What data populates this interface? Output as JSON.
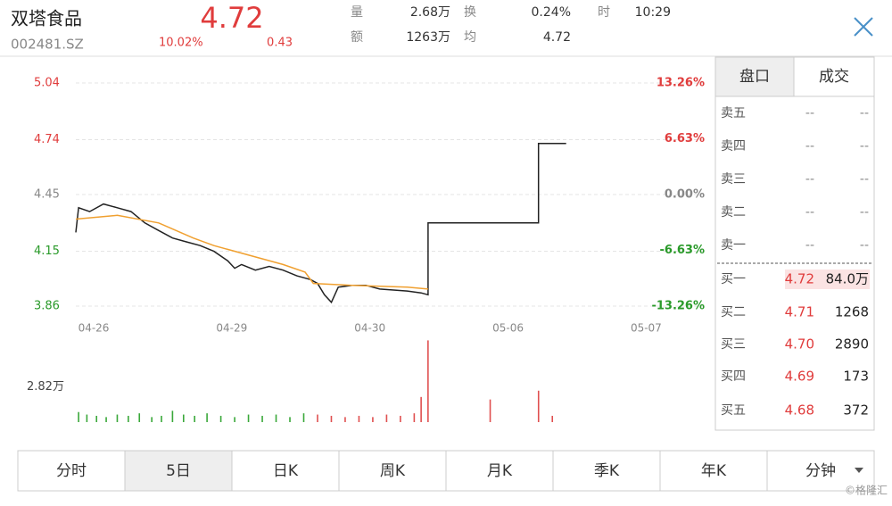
{
  "header": {
    "name": "双塔食品",
    "code": "002481.SZ",
    "price": "4.72",
    "change_pct": "10.02%",
    "change": "0.43",
    "stats": [
      {
        "label": "量",
        "value": "2.68万"
      },
      {
        "label": "换",
        "value": "0.24%"
      },
      {
        "label": "时",
        "value": "10:29"
      },
      {
        "label": "额",
        "value": "1263万"
      },
      {
        "label": "均",
        "value": "4.72"
      }
    ]
  },
  "chart_data": [
    {
      "type": "line",
      "xlim": [
        0,
        4.23
      ],
      "xticks": [
        {
          "value": 0,
          "label": "04-26"
        },
        {
          "value": 1,
          "label": "04-29"
        },
        {
          "value": 2,
          "label": "04-30"
        },
        {
          "value": 3,
          "label": "05-06"
        },
        {
          "value": 4,
          "label": "05-07"
        }
      ],
      "ylim": [
        3.86,
        5.04
      ],
      "yticks": [
        5.04,
        4.74,
        4.45,
        4.15,
        3.86
      ],
      "y2lim": [
        -13.26,
        13.26
      ],
      "y2ticks": [
        {
          "value": 13.26,
          "label": "13.26%"
        },
        {
          "value": 6.63,
          "label": "6.63%"
        },
        {
          "value": 0,
          "label": "0.00%"
        },
        {
          "value": -6.63,
          "label": "-6.63%"
        },
        {
          "value": -13.26,
          "label": "-13.26%"
        }
      ],
      "grid": true,
      "series": [
        {
          "color": "#222222",
          "x": [
            0,
            0.02,
            0.1,
            0.2,
            0.3,
            0.4,
            0.5,
            0.6,
            0.7,
            0.8,
            0.9,
            1.0,
            1.1,
            1.15,
            1.2,
            1.3,
            1.4,
            1.5,
            1.6,
            1.7,
            1.75,
            1.8,
            1.85,
            1.9,
            2.0,
            2.1,
            2.2,
            2.4,
            2.5,
            2.55,
            2.55,
            3.35,
            3.35,
            3.55
          ],
          "values": [
            4.25,
            4.38,
            4.36,
            4.4,
            4.38,
            4.36,
            4.3,
            4.26,
            4.22,
            4.2,
            4.18,
            4.15,
            4.1,
            4.06,
            4.08,
            4.05,
            4.07,
            4.05,
            4.02,
            4.0,
            3.98,
            3.92,
            3.88,
            3.96,
            3.97,
            3.97,
            3.95,
            3.94,
            3.93,
            3.92,
            4.3,
            4.3,
            4.72,
            4.72
          ]
        },
        {
          "color": "#f0a030",
          "x": [
            0,
            0.3,
            0.6,
            0.85,
            1.0,
            1.5,
            1.66,
            1.72,
            2.0,
            2.4,
            2.55
          ],
          "values": [
            4.32,
            4.34,
            4.3,
            4.22,
            4.18,
            4.08,
            4.04,
            3.98,
            3.97,
            3.96,
            3.95
          ]
        }
      ]
    },
    {
      "type": "bar",
      "xlim": [
        0,
        4.23
      ],
      "ylim": [
        0,
        6.6
      ],
      "yticks": [
        {
          "value": 2.82,
          "label": "2.82万"
        }
      ],
      "series": [
        {
          "color": "#3aa83a",
          "x": [
            0.02,
            0.08,
            0.15,
            0.22,
            0.3,
            0.38,
            0.46,
            0.55,
            0.62,
            0.7,
            0.78,
            0.86,
            0.95,
            1.05,
            1.15,
            1.25,
            1.35,
            1.45,
            1.55,
            1.65
          ],
          "values": [
            0.8,
            0.6,
            0.5,
            0.4,
            0.6,
            0.5,
            0.7,
            0.4,
            0.5,
            0.9,
            0.6,
            0.5,
            0.7,
            0.5,
            0.4,
            0.6,
            0.5,
            0.6,
            0.4,
            0.7
          ]
        },
        {
          "color": "#e05050",
          "x": [
            1.75,
            1.85,
            1.95,
            2.05,
            2.15,
            2.25,
            2.35,
            2.45,
            2.5,
            2.55,
            3.0,
            3.35,
            3.45
          ],
          "values": [
            0.6,
            0.5,
            0.4,
            0.5,
            0.4,
            0.6,
            0.5,
            0.7,
            2.0,
            6.5,
            1.8,
            2.5,
            0.5
          ]
        }
      ]
    }
  ],
  "order_book": {
    "tabs": [
      "盘口",
      "成交"
    ],
    "asks": [
      [
        "卖五",
        "--",
        "--"
      ],
      [
        "卖四",
        "--",
        "--"
      ],
      [
        "卖三",
        "--",
        "--"
      ],
      [
        "卖二",
        "--",
        "--"
      ],
      [
        "卖一",
        "--",
        "--"
      ]
    ],
    "bids": [
      [
        "买一",
        "4.72",
        "84.0万"
      ],
      [
        "买二",
        "4.71",
        "1268"
      ],
      [
        "买三",
        "4.70",
        "2890"
      ],
      [
        "买四",
        "4.69",
        "173"
      ],
      [
        "买五",
        "4.68",
        "372"
      ]
    ]
  },
  "bottom_tabs": [
    "分时",
    "5日",
    "日K",
    "周K",
    "月K",
    "季K",
    "年K",
    "分钟"
  ],
  "watermark": "©格隆汇"
}
